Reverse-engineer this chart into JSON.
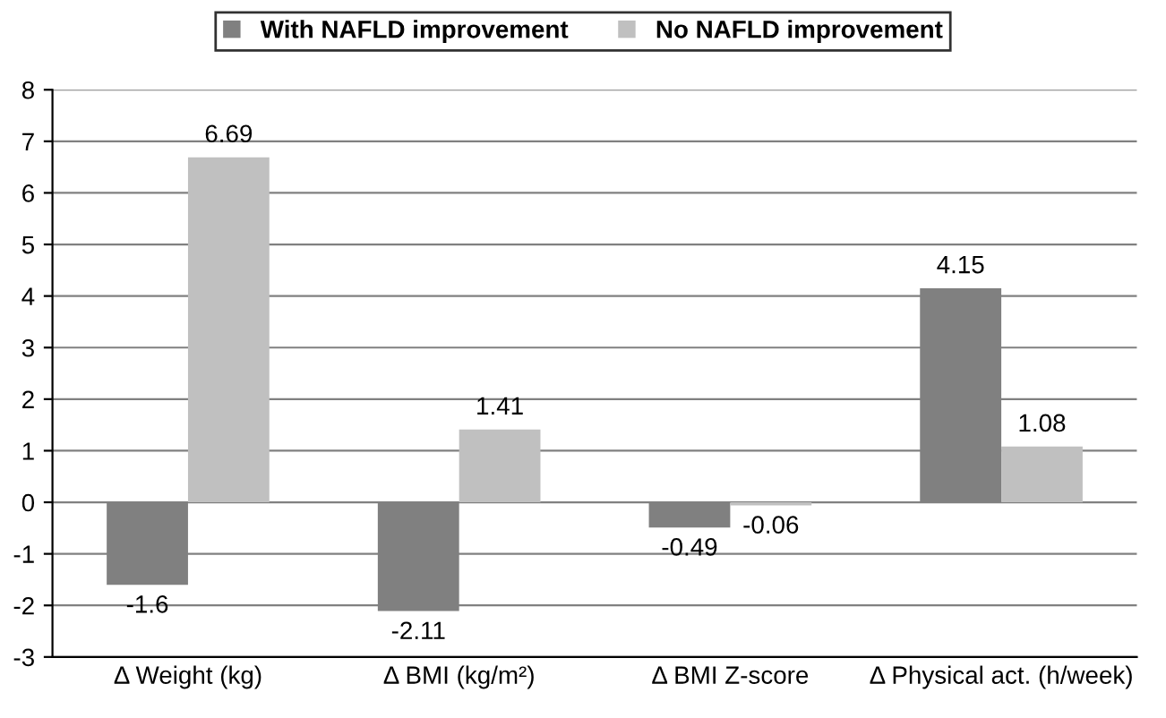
{
  "chart_data": {
    "type": "bar",
    "categories": [
      "Δ Weight (kg)",
      "Δ BMI (kg/m²)",
      "Δ BMI Z-score",
      "Δ Physical act. (h/week)"
    ],
    "series": [
      {
        "name": "With NAFLD improvement",
        "color": "#808080",
        "values": [
          -1.6,
          -2.11,
          -0.49,
          4.15
        ]
      },
      {
        "name": "No NAFLD improvement",
        "color": "#c0c0c0",
        "values": [
          6.69,
          1.41,
          -0.06,
          1.08
        ]
      }
    ],
    "ylim": [
      -3,
      8
    ],
    "yticks": [
      -3,
      -2,
      -1,
      0,
      1,
      2,
      3,
      4,
      5,
      6,
      7,
      8
    ],
    "grid": "y",
    "legend": "top",
    "data_labels": true
  }
}
